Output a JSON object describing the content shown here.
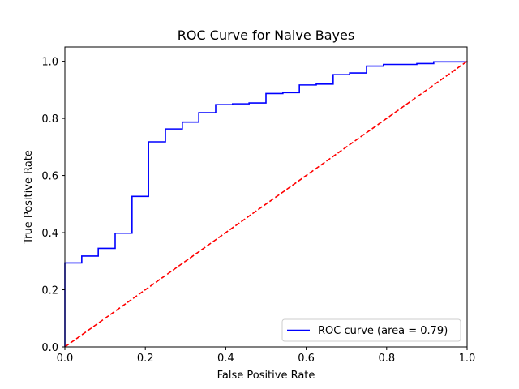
{
  "chart_data": {
    "type": "line",
    "title": "ROC Curve for Naive Bayes",
    "xlabel": "False Positive Rate",
    "ylabel": "True Positive Rate",
    "xlim": [
      0.0,
      1.0
    ],
    "ylim": [
      0.0,
      1.05
    ],
    "xticks": [
      "0.0",
      "0.2",
      "0.4",
      "0.6",
      "0.8",
      "1.0"
    ],
    "yticks": [
      "0.0",
      "0.2",
      "0.4",
      "0.6",
      "0.8",
      "1.0"
    ],
    "grid": false,
    "legend_position": "lower-right",
    "series": [
      {
        "name": "ROC curve (area = 0.79)",
        "color": "#0000ff",
        "style": "step",
        "x": [
          0.0,
          0.0,
          0.042,
          0.042,
          0.083,
          0.083,
          0.125,
          0.125,
          0.167,
          0.167,
          0.208,
          0.208,
          0.25,
          0.25,
          0.292,
          0.292,
          0.333,
          0.333,
          0.375,
          0.375,
          0.417,
          0.417,
          0.458,
          0.458,
          0.5,
          0.5,
          0.542,
          0.542,
          0.583,
          0.583,
          0.625,
          0.625,
          0.667,
          0.667,
          0.708,
          0.708,
          0.75,
          0.75,
          0.792,
          0.792,
          0.875,
          0.875,
          0.917,
          0.917,
          1.0,
          1.0
        ],
        "y": [
          0.0,
          0.294,
          0.294,
          0.318,
          0.318,
          0.345,
          0.345,
          0.398,
          0.398,
          0.527,
          0.527,
          0.718,
          0.718,
          0.763,
          0.763,
          0.787,
          0.787,
          0.82,
          0.82,
          0.848,
          0.848,
          0.851,
          0.851,
          0.854,
          0.854,
          0.887,
          0.887,
          0.89,
          0.89,
          0.917,
          0.917,
          0.92,
          0.92,
          0.953,
          0.953,
          0.959,
          0.959,
          0.983,
          0.983,
          0.989,
          0.989,
          0.992,
          0.992,
          0.998,
          0.998,
          1.0
        ]
      },
      {
        "name": "",
        "color": "#ff0000",
        "style": "dashed",
        "x": [
          0.0,
          1.0
        ],
        "y": [
          0.0,
          1.0
        ]
      }
    ]
  }
}
